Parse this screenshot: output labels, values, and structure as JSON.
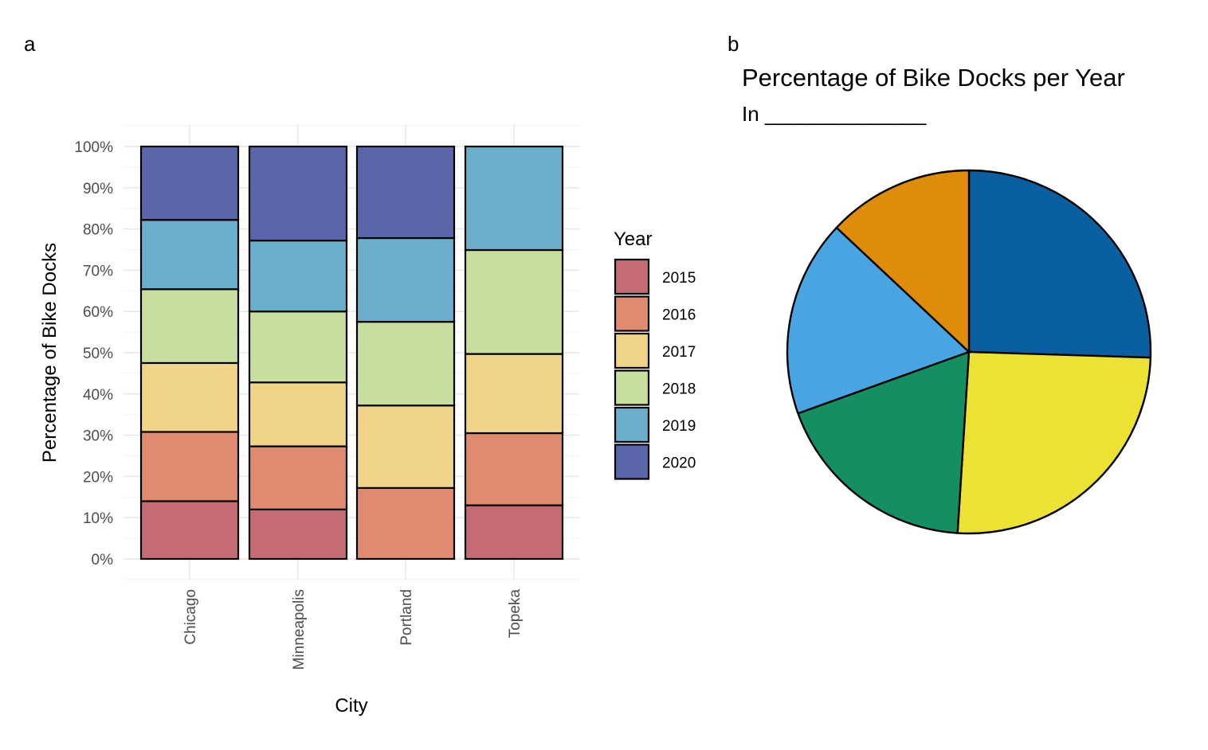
{
  "panels": {
    "a_label": "a",
    "b_label": "b"
  },
  "colors": {
    "2015": "#c56b76",
    "2016": "#e08a6f",
    "2017": "#f0d488",
    "2018": "#c8de9e",
    "2019": "#6aaecb",
    "2020": "#5b66aa"
  },
  "chart_data": [
    {
      "type": "bar",
      "stacked": true,
      "normalized": true,
      "xlabel": "City",
      "ylabel": "Percentage of Bike Docks",
      "categories": [
        "Chicago",
        "Minneapolis",
        "Portland",
        "Topeka"
      ],
      "ylim": [
        0,
        100
      ],
      "y_ticks": [
        "0%",
        "10%",
        "20%",
        "30%",
        "40%",
        "50%",
        "60%",
        "70%",
        "80%",
        "90%",
        "100%"
      ],
      "grid": true,
      "legend": {
        "title": "Year",
        "position": "right"
      },
      "series": [
        {
          "name": "2015",
          "values": [
            14,
            12,
            0,
            13
          ]
        },
        {
          "name": "2016",
          "values": [
            16.8,
            15.3,
            17.2,
            17.5
          ]
        },
        {
          "name": "2017",
          "values": [
            16.7,
            15.5,
            20,
            19.2
          ]
        },
        {
          "name": "2018",
          "values": [
            17.9,
            17.2,
            20.3,
            25.2
          ]
        },
        {
          "name": "2019",
          "values": [
            16.8,
            17.2,
            20.3,
            25.1
          ]
        },
        {
          "name": "2020",
          "values": [
            17.8,
            22.8,
            22.2,
            0
          ]
        }
      ]
    },
    {
      "type": "pie",
      "title": "Percentage of Bike Docks per Year",
      "subtitle": "In ______________",
      "values": [
        25.5,
        25.5,
        18.5,
        17.5,
        13
      ],
      "colors": [
        "#0a5fa0",
        "#ece234",
        "#148f62",
        "#49a5e2",
        "#df8c0b"
      ]
    }
  ]
}
